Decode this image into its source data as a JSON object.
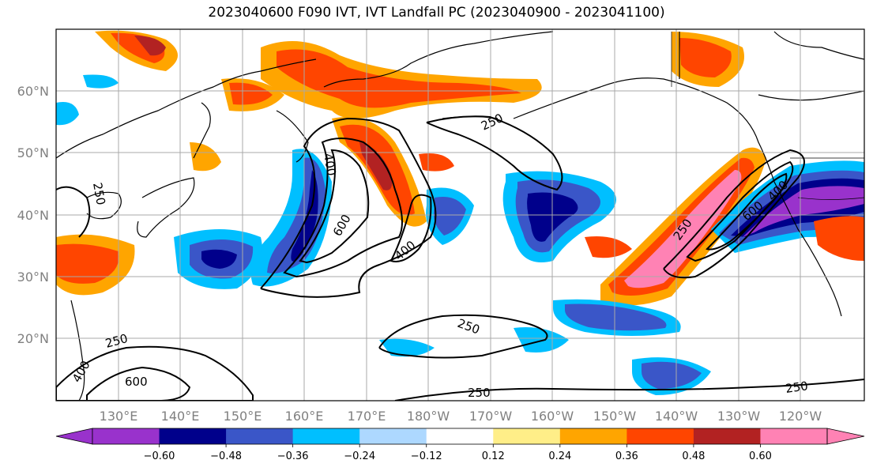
{
  "title": "2023040600 F090 IVT, IVT Landfall PC (2023040900 - 2023041100)",
  "map": {
    "lon_labels": [
      "130°E",
      "140°E",
      "150°E",
      "160°E",
      "170°E",
      "180°W",
      "170°W",
      "160°W",
      "150°W",
      "140°W",
      "130°W",
      "120°W"
    ],
    "lat_labels": [
      "60°N",
      "50°N",
      "40°N",
      "30°N",
      "20°N"
    ],
    "contour_labels": [
      "250",
      "400",
      "600"
    ]
  },
  "colorbar": {
    "colors": [
      "#9932cc",
      "#00008b",
      "#3a56c8",
      "#00bfff",
      "#add8ff",
      "#ffffff",
      "#ffee88",
      "#ffa500",
      "#ff4500",
      "#b22222",
      "#ff82b4"
    ],
    "labels": [
      "−0.60",
      "−0.48",
      "−0.36",
      "−0.24",
      "−0.12",
      "0.12",
      "0.24",
      "0.36",
      "0.48",
      "0.60"
    ]
  }
}
